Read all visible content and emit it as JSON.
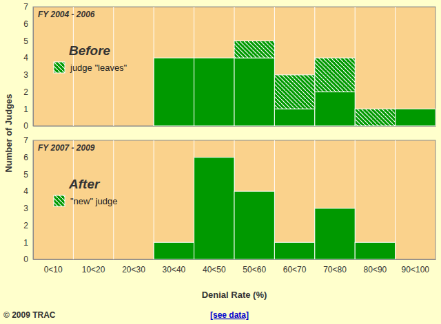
{
  "chart_data": [
    {
      "type": "bar",
      "stacked": true,
      "title": "FY 2004 - 2006",
      "annotation": "Before",
      "categories": [
        null,
        null,
        null,
        null,
        null,
        null,
        null,
        null,
        null,
        null
      ],
      "series": [
        {
          "values": [
            0,
            0,
            0,
            4,
            4,
            4,
            1,
            2,
            0,
            1
          ]
        },
        {
          "name": "judge \"leaves\"",
          "values": [
            0,
            0,
            0,
            0,
            0,
            1,
            2,
            2,
            1,
            0
          ]
        }
      ],
      "color": "#009900",
      "legend": "upper left",
      "ylim": [
        0,
        7
      ],
      "yticks": [
        0,
        1,
        2,
        3,
        4,
        5,
        6,
        7
      ]
    },
    {
      "type": "bar",
      "stacked": true,
      "title": "FY 2007 - 2009",
      "annotation": "After",
      "categories": [
        "0<10",
        "10<20",
        "20<30",
        "30<40",
        "40<50",
        "50<60",
        "60<70",
        "70<80",
        "80<90",
        "90<100"
      ],
      "series": [
        {
          "values": [
            0,
            0,
            0,
            1,
            6,
            4,
            1,
            3,
            1,
            0
          ]
        },
        {
          "name": "\"new\" judge",
          "values": [
            0,
            0,
            0,
            0,
            0,
            0,
            0,
            0,
            0,
            0
          ]
        }
      ],
      "color": "#009900",
      "legend": "upper left",
      "ylim": [
        0,
        7
      ],
      "yticks": [
        0,
        1,
        2,
        3,
        4,
        5,
        6,
        7
      ]
    }
  ],
  "y_label": "Number of Judges",
  "x_label": "Denial Rate (%)",
  "footer": {
    "copyright": "© 2009 TRAC",
    "link": "[see data]"
  }
}
